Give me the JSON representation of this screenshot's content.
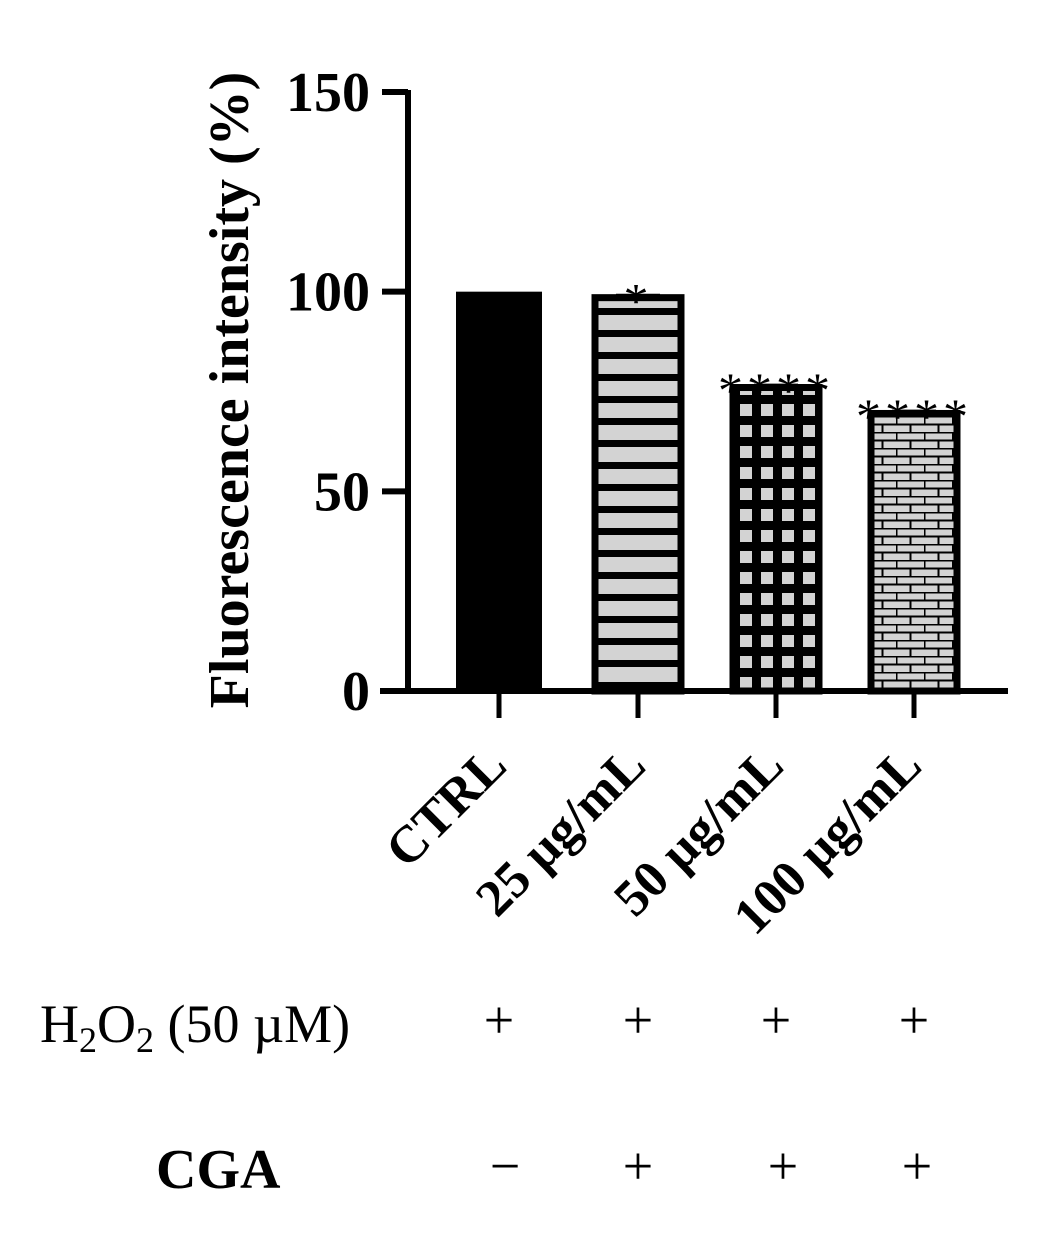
{
  "chart_data": {
    "type": "bar",
    "title": "",
    "xlabel": "",
    "ylabel": "Fluorescence intensity (%)",
    "ylim": [
      0,
      150
    ],
    "yticks": [
      0,
      50,
      100,
      150
    ],
    "grid": false,
    "legend": "none",
    "categories": [
      "CTRL",
      "25 µg/mL",
      "50 µg/mL",
      "100 µg/mL"
    ],
    "values": [
      100,
      98.5,
      76,
      69.5
    ],
    "errors": [
      0,
      0.6,
      0.6,
      0.6
    ],
    "significance": [
      "",
      "*",
      "****",
      "****"
    ],
    "patterns": [
      "solid",
      "horizontal-stripes",
      "grid",
      "brick"
    ],
    "colors": {
      "bar_stroke": "#000000",
      "bar_fill": "#d3d3d3",
      "solid_fill": "#000000"
    }
  },
  "treatments": [
    {
      "label_main": "H",
      "sub1": "2",
      "mid": "O",
      "sub2": "2",
      "suffix": " (50 µM)",
      "marks": [
        "+",
        "+",
        "+",
        "+"
      ]
    },
    {
      "label_main": "CGA",
      "marks": [
        "−",
        "+",
        "+",
        "+"
      ]
    }
  ]
}
